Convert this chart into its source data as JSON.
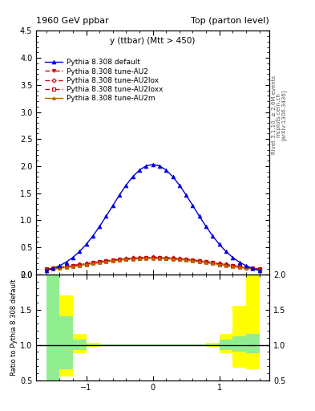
{
  "title_left": "1960 GeV ppbar",
  "title_right": "Top (parton level)",
  "annotation": "y (ttbar) (Mtt > 450)",
  "ylabel_ratio": "Ratio to Pythia 8.308 default",
  "right_label_1": "Rivet 3.1.10, ≥ 2.6M events",
  "right_label_2": "mcplots.cern.ch",
  "right_label_3": "[arXiv:1306.3436]",
  "xlim": [
    -1.75,
    1.75
  ],
  "ylim_main": [
    0.0,
    4.5
  ],
  "ylim_ratio": [
    0.5,
    2.0
  ],
  "yticks_main": [
    0.5,
    1.0,
    1.5,
    2.0,
    2.5,
    3.0,
    3.5,
    4.0,
    4.5
  ],
  "yticks_ratio": [
    0.5,
    1.0,
    1.5,
    2.0
  ],
  "legend_entries": [
    "Pythia 8.308 default",
    "Pythia 8.308 tune-AU2",
    "Pythia 8.308 tune-AU2lox",
    "Pythia 8.308 tune-AU2loxx",
    "Pythia 8.308 tune-AU2m"
  ],
  "color_default": "#0000dd",
  "color_au2": "#cc0000",
  "color_au2lox": "#cc0000",
  "color_au2loxx": "#cc0000",
  "color_au2m": "#bb6600",
  "background": "#ffffff"
}
